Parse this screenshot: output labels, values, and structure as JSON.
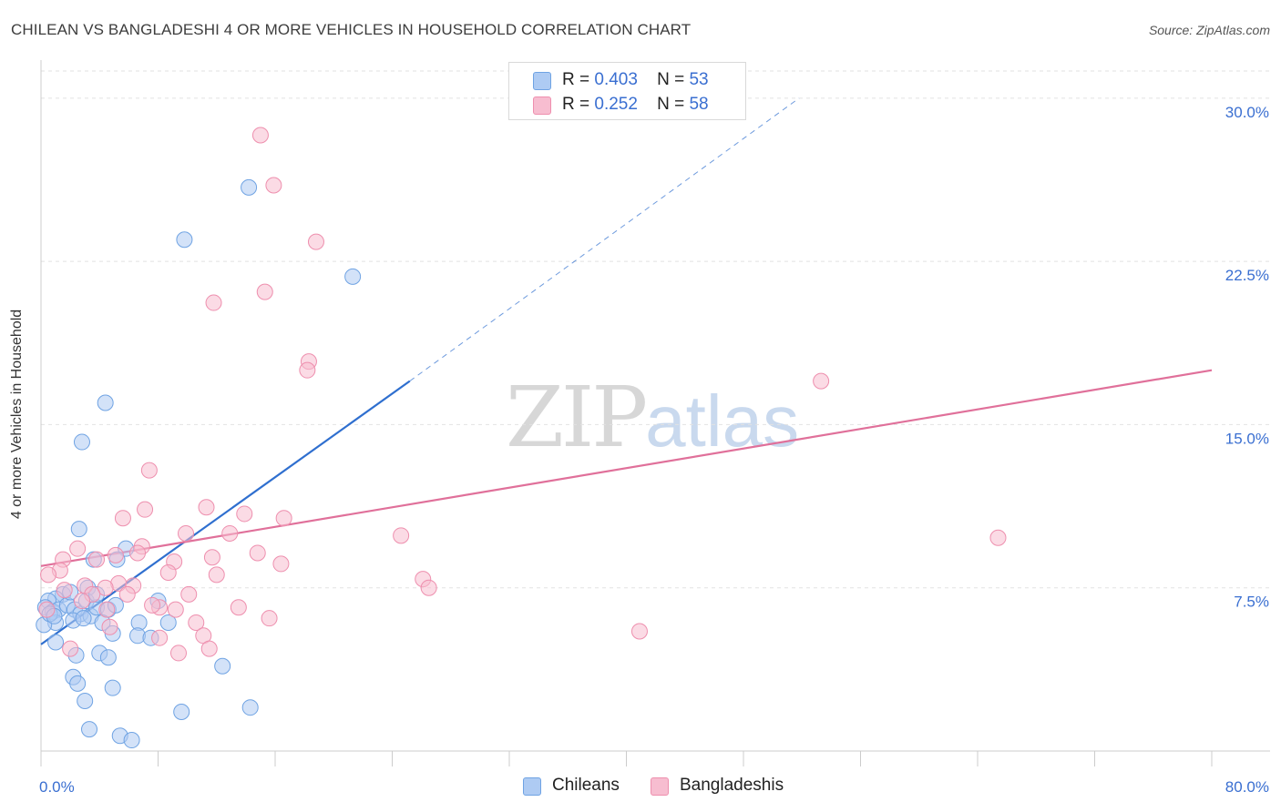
{
  "title": "CHILEAN VS BANGLADESHI 4 OR MORE VEHICLES IN HOUSEHOLD CORRELATION CHART",
  "source": "Source: ZipAtlas.com",
  "watermark": {
    "zip": "ZIP",
    "atlas": "atlas"
  },
  "legend": {
    "rows": [
      {
        "r_label": "R =",
        "r_value": "0.403",
        "n_label": "N =",
        "n_value": "53",
        "color": "#aecbf3"
      },
      {
        "r_label": "R =",
        "r_value": "0.252",
        "n_label": "N =",
        "n_value": "58",
        "color": "#f7bdd0"
      }
    ]
  },
  "bottom_legend": [
    {
      "label": "Chileans",
      "color": "#aecbf3"
    },
    {
      "label": "Bangladeshis",
      "color": "#f7bdd0"
    }
  ],
  "chart_data": {
    "type": "scatter",
    "title": "CHILEAN VS BANGLADESHI 4 OR MORE VEHICLES IN HOUSEHOLD CORRELATION CHART",
    "xlabel": "",
    "ylabel": "4 or more Vehicles in Household",
    "xlim": [
      0,
      80
    ],
    "ylim": [
      0,
      31.5
    ],
    "x_tick_labels": [
      "0.0%",
      "80.0%"
    ],
    "y_ticks": [
      7.5,
      15.0,
      22.5,
      30.0
    ],
    "y_tick_labels": [
      "7.5%",
      "15.0%",
      "22.5%",
      "30.0%"
    ],
    "grid": true,
    "legend_position": "top-center",
    "series": [
      {
        "name": "Chileans",
        "color": "#6fa3e3",
        "fill": "#aecbf3",
        "line_color": "#2f6fcf",
        "points": [
          [
            14.2,
            25.9
          ],
          [
            9.8,
            23.5
          ],
          [
            21.3,
            21.8
          ],
          [
            4.4,
            16.0
          ],
          [
            2.8,
            14.2
          ],
          [
            2.6,
            10.2
          ],
          [
            5.8,
            9.3
          ],
          [
            5.2,
            8.8
          ],
          [
            3.6,
            8.8
          ],
          [
            3.2,
            7.5
          ],
          [
            1.5,
            7.2
          ],
          [
            1.0,
            7.0
          ],
          [
            0.5,
            6.9
          ],
          [
            0.3,
            6.6
          ],
          [
            0.8,
            6.4
          ],
          [
            1.2,
            6.5
          ],
          [
            1.8,
            6.7
          ],
          [
            2.3,
            6.5
          ],
          [
            2.7,
            6.3
          ],
          [
            3.1,
            6.9
          ],
          [
            3.4,
            6.2
          ],
          [
            3.8,
            6.6
          ],
          [
            4.6,
            6.5
          ],
          [
            1.0,
            5.9
          ],
          [
            2.2,
            6.0
          ],
          [
            4.2,
            5.9
          ],
          [
            4.9,
            5.4
          ],
          [
            6.7,
            5.9
          ],
          [
            6.6,
            5.3
          ],
          [
            8.0,
            6.9
          ],
          [
            8.7,
            5.9
          ],
          [
            7.5,
            5.2
          ],
          [
            1.0,
            5.0
          ],
          [
            0.2,
            5.8
          ],
          [
            0.6,
            6.3
          ],
          [
            2.4,
            4.4
          ],
          [
            4.0,
            4.5
          ],
          [
            4.6,
            4.3
          ],
          [
            12.4,
            3.9
          ],
          [
            2.2,
            3.4
          ],
          [
            2.5,
            3.1
          ],
          [
            4.9,
            2.9
          ],
          [
            3.0,
            2.3
          ],
          [
            9.6,
            1.8
          ],
          [
            14.3,
            2.0
          ],
          [
            3.3,
            1.0
          ],
          [
            5.4,
            0.7
          ],
          [
            6.2,
            0.5
          ],
          [
            3.8,
            7.2
          ],
          [
            2.0,
            7.3
          ],
          [
            0.9,
            6.2
          ],
          [
            2.9,
            6.1
          ],
          [
            5.1,
            6.7
          ]
        ],
        "trend": {
          "x": [
            0,
            25.2
          ],
          "y": [
            4.9,
            17.0
          ],
          "dashed_to": [
            51.8,
            30.0
          ]
        }
      },
      {
        "name": "Bangladeshis",
        "color": "#ee8fae",
        "fill": "#f7bdd0",
        "line_color": "#e0709a",
        "points": [
          [
            15.0,
            28.3
          ],
          [
            15.9,
            26.0
          ],
          [
            18.8,
            23.4
          ],
          [
            11.8,
            20.6
          ],
          [
            15.3,
            21.1
          ],
          [
            18.3,
            17.9
          ],
          [
            18.2,
            17.5
          ],
          [
            53.3,
            17.0
          ],
          [
            7.4,
            12.9
          ],
          [
            7.1,
            11.1
          ],
          [
            11.3,
            11.2
          ],
          [
            5.6,
            10.7
          ],
          [
            13.9,
            10.9
          ],
          [
            16.6,
            10.7
          ],
          [
            9.9,
            10.0
          ],
          [
            12.9,
            10.0
          ],
          [
            24.6,
            9.9
          ],
          [
            65.4,
            9.8
          ],
          [
            2.5,
            9.3
          ],
          [
            6.9,
            9.4
          ],
          [
            5.1,
            9.0
          ],
          [
            6.6,
            9.1
          ],
          [
            14.8,
            9.1
          ],
          [
            1.5,
            8.8
          ],
          [
            3.8,
            8.8
          ],
          [
            11.7,
            8.9
          ],
          [
            16.4,
            8.6
          ],
          [
            9.1,
            8.7
          ],
          [
            1.3,
            8.3
          ],
          [
            0.5,
            8.1
          ],
          [
            8.7,
            8.2
          ],
          [
            12.0,
            8.1
          ],
          [
            26.1,
            7.9
          ],
          [
            3.0,
            7.6
          ],
          [
            5.3,
            7.7
          ],
          [
            6.3,
            7.6
          ],
          [
            4.4,
            7.5
          ],
          [
            26.5,
            7.5
          ],
          [
            1.6,
            7.4
          ],
          [
            3.5,
            7.2
          ],
          [
            10.1,
            7.2
          ],
          [
            5.9,
            7.2
          ],
          [
            2.8,
            6.9
          ],
          [
            8.1,
            6.6
          ],
          [
            9.2,
            6.5
          ],
          [
            13.5,
            6.6
          ],
          [
            4.5,
            6.5
          ],
          [
            15.6,
            6.1
          ],
          [
            10.6,
            5.9
          ],
          [
            4.7,
            5.7
          ],
          [
            8.1,
            5.2
          ],
          [
            11.1,
            5.3
          ],
          [
            2.0,
            4.7
          ],
          [
            11.5,
            4.7
          ],
          [
            9.4,
            4.5
          ],
          [
            40.9,
            5.5
          ],
          [
            7.6,
            6.7
          ],
          [
            0.4,
            6.5
          ]
        ],
        "trend": {
          "x": [
            0,
            80
          ],
          "y": [
            8.5,
            17.5
          ]
        }
      }
    ]
  }
}
